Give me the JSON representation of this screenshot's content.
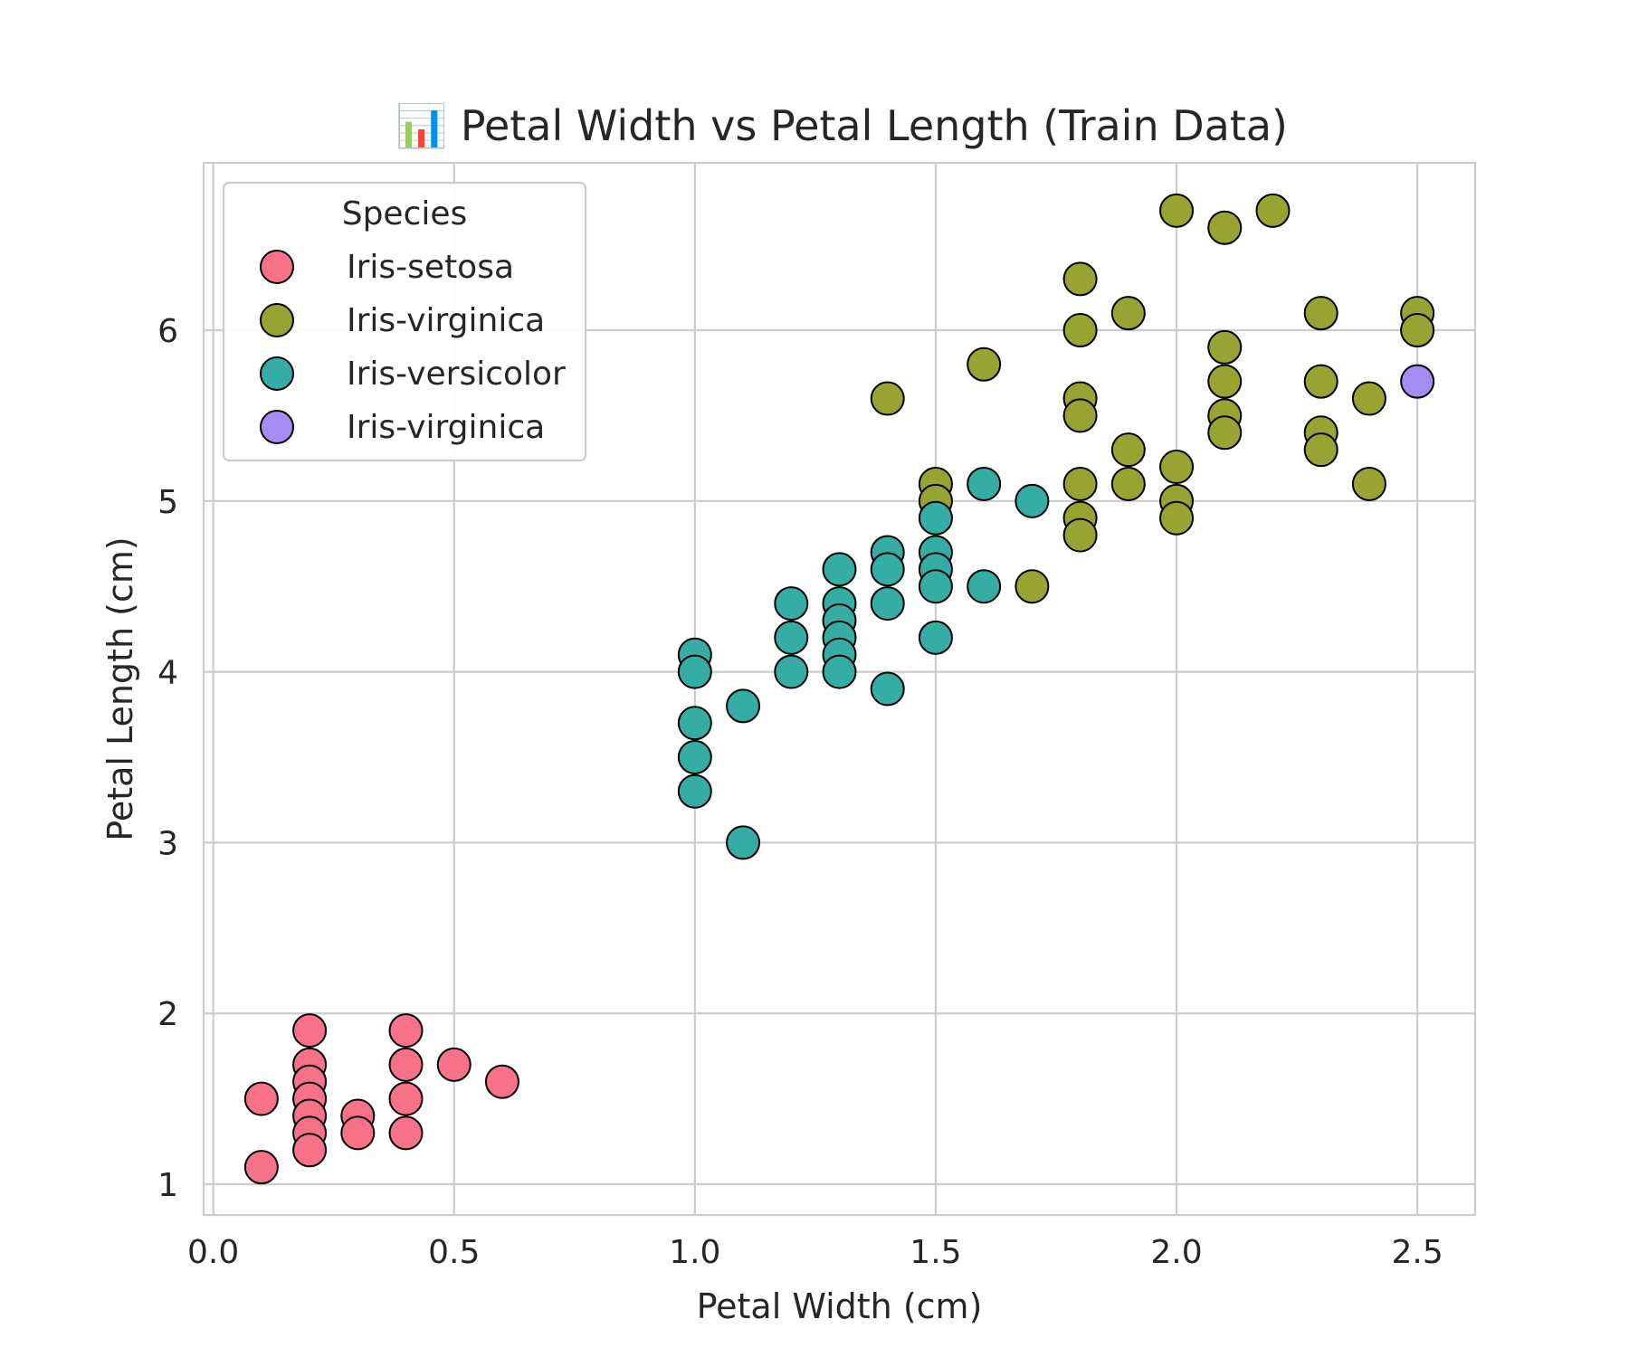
{
  "chart_data": {
    "type": "scatter",
    "title": "📊 Petal Width vs Petal Length (Train Data)",
    "xlabel": "Petal Width (cm)",
    "ylabel": "Petal Length (cm)",
    "xlim": [
      -0.02,
      2.62
    ],
    "ylim": [
      0.82,
      6.98
    ],
    "x_ticks": [
      0.0,
      0.5,
      1.0,
      1.5,
      2.0,
      2.5
    ],
    "x_tick_labels": [
      "0.0",
      "0.5",
      "1.0",
      "1.5",
      "2.0",
      "2.5"
    ],
    "y_ticks": [
      1,
      2,
      3,
      4,
      5,
      6
    ],
    "y_tick_labels": [
      "1",
      "2",
      "3",
      "4",
      "5",
      "6"
    ],
    "grid": true,
    "legend": {
      "title": "Species",
      "placement": "top-left"
    },
    "series": [
      {
        "name": "Iris-setosa",
        "color": "#f77189",
        "points": [
          {
            "x": 0.1,
            "y": 1.5
          },
          {
            "x": 0.1,
            "y": 1.1
          },
          {
            "x": 0.2,
            "y": 1.9
          },
          {
            "x": 0.2,
            "y": 1.7
          },
          {
            "x": 0.2,
            "y": 1.6
          },
          {
            "x": 0.2,
            "y": 1.5
          },
          {
            "x": 0.2,
            "y": 1.4
          },
          {
            "x": 0.2,
            "y": 1.3
          },
          {
            "x": 0.2,
            "y": 1.2
          },
          {
            "x": 0.3,
            "y": 1.4
          },
          {
            "x": 0.3,
            "y": 1.3
          },
          {
            "x": 0.4,
            "y": 1.9
          },
          {
            "x": 0.4,
            "y": 1.7
          },
          {
            "x": 0.4,
            "y": 1.5
          },
          {
            "x": 0.4,
            "y": 1.3
          },
          {
            "x": 0.5,
            "y": 1.7
          },
          {
            "x": 0.6,
            "y": 1.6
          }
        ]
      },
      {
        "name": "Iris-virginica",
        "color": "#97a431",
        "points": [
          {
            "x": 1.4,
            "y": 5.6
          },
          {
            "x": 1.5,
            "y": 5.1
          },
          {
            "x": 1.5,
            "y": 5.0
          },
          {
            "x": 1.6,
            "y": 5.8
          },
          {
            "x": 1.7,
            "y": 4.5
          },
          {
            "x": 1.8,
            "y": 6.3
          },
          {
            "x": 1.8,
            "y": 6.0
          },
          {
            "x": 1.8,
            "y": 5.6
          },
          {
            "x": 1.8,
            "y": 5.5
          },
          {
            "x": 1.8,
            "y": 5.1
          },
          {
            "x": 1.8,
            "y": 4.9
          },
          {
            "x": 1.8,
            "y": 4.8
          },
          {
            "x": 1.9,
            "y": 6.1
          },
          {
            "x": 1.9,
            "y": 5.3
          },
          {
            "x": 1.9,
            "y": 5.1
          },
          {
            "x": 2.0,
            "y": 6.7
          },
          {
            "x": 2.0,
            "y": 5.2
          },
          {
            "x": 2.0,
            "y": 5.0
          },
          {
            "x": 2.0,
            "y": 4.9
          },
          {
            "x": 2.1,
            "y": 6.6
          },
          {
            "x": 2.1,
            "y": 5.9
          },
          {
            "x": 2.1,
            "y": 5.7
          },
          {
            "x": 2.1,
            "y": 5.5
          },
          {
            "x": 2.1,
            "y": 5.4
          },
          {
            "x": 2.2,
            "y": 6.7
          },
          {
            "x": 2.3,
            "y": 6.1
          },
          {
            "x": 2.3,
            "y": 5.7
          },
          {
            "x": 2.3,
            "y": 5.4
          },
          {
            "x": 2.3,
            "y": 5.3
          },
          {
            "x": 2.4,
            "y": 5.6
          },
          {
            "x": 2.4,
            "y": 5.1
          },
          {
            "x": 2.5,
            "y": 6.1
          },
          {
            "x": 2.5,
            "y": 6.0
          }
        ]
      },
      {
        "name": "Iris-versicolor",
        "color": "#36ada4",
        "points": [
          {
            "x": 1.0,
            "y": 4.1
          },
          {
            "x": 1.0,
            "y": 4.0
          },
          {
            "x": 1.0,
            "y": 3.7
          },
          {
            "x": 1.0,
            "y": 3.5
          },
          {
            "x": 1.0,
            "y": 3.3
          },
          {
            "x": 1.1,
            "y": 3.8
          },
          {
            "x": 1.1,
            "y": 3.0
          },
          {
            "x": 1.2,
            "y": 4.4
          },
          {
            "x": 1.2,
            "y": 4.2
          },
          {
            "x": 1.2,
            "y": 4.0
          },
          {
            "x": 1.3,
            "y": 4.6
          },
          {
            "x": 1.3,
            "y": 4.4
          },
          {
            "x": 1.3,
            "y": 4.3
          },
          {
            "x": 1.3,
            "y": 4.2
          },
          {
            "x": 1.3,
            "y": 4.1
          },
          {
            "x": 1.3,
            "y": 4.0
          },
          {
            "x": 1.4,
            "y": 4.7
          },
          {
            "x": 1.4,
            "y": 4.6
          },
          {
            "x": 1.4,
            "y": 4.4
          },
          {
            "x": 1.4,
            "y": 3.9
          },
          {
            "x": 1.5,
            "y": 4.9
          },
          {
            "x": 1.5,
            "y": 4.7
          },
          {
            "x": 1.5,
            "y": 4.6
          },
          {
            "x": 1.5,
            "y": 4.5
          },
          {
            "x": 1.5,
            "y": 4.2
          },
          {
            "x": 1.6,
            "y": 5.1
          },
          {
            "x": 1.6,
            "y": 4.5
          },
          {
            "x": 1.7,
            "y": 5.0
          }
        ]
      },
      {
        "name": "Iris-virginica",
        "color": "#a48cf4",
        "points": [
          {
            "x": 2.5,
            "y": 5.7
          }
        ]
      }
    ]
  }
}
